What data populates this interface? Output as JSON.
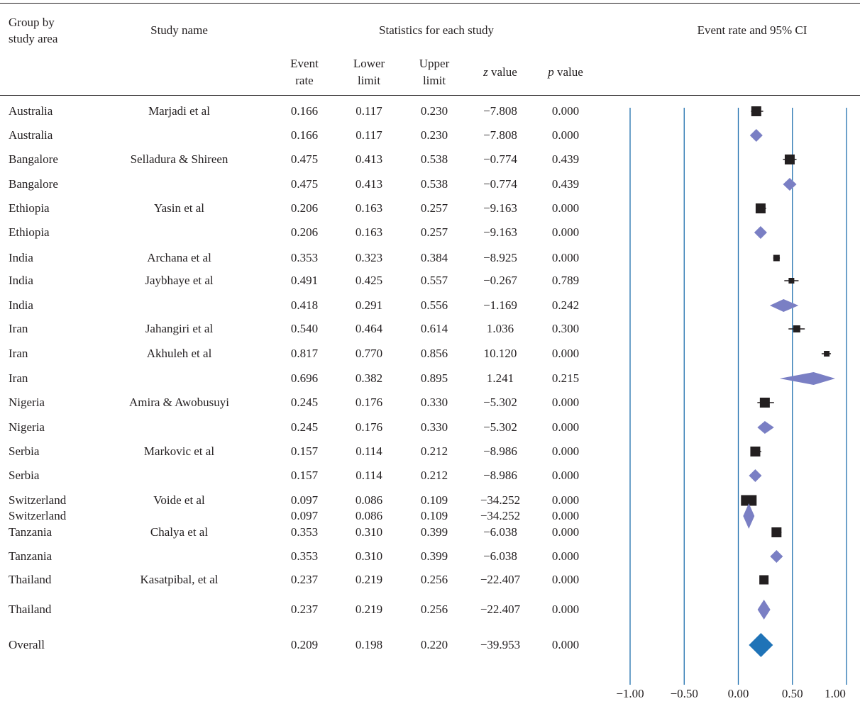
{
  "header": {
    "group_label": "Group by\nstudy area",
    "group_line1": "Group by",
    "group_line2": "study area",
    "study_label": "Study name",
    "stats_label": "Statistics for each study",
    "ci_label": "Event rate and 95% CI",
    "col_event_1": "Event",
    "col_event_2": "rate",
    "col_lower_1": "Lower",
    "col_lower_2": "limit",
    "col_upper_1": "Upper",
    "col_upper_2": "limit",
    "col_z_italic": "z",
    "col_z_rest": " value",
    "col_p_italic": "p",
    "col_p_rest": " value"
  },
  "chart_data": {
    "type": "forest",
    "xlim": [
      -1.0,
      1.0
    ],
    "x_ticks": [
      "−1.00",
      "−0.50",
      "0.00",
      "0.50",
      "1.00"
    ],
    "x_tick_values": [
      -1.0,
      -0.5,
      0.0,
      0.5,
      1.0
    ],
    "rows": [
      {
        "group": "Australia",
        "study": "Marjadi et al",
        "event_rate": "0.166",
        "lower": "0.117",
        "upper": "0.230",
        "z": "−7.808",
        "p": "0.000",
        "er": 0.166,
        "lo": 0.117,
        "hi": 0.23,
        "kind": "study"
      },
      {
        "group": "Australia",
        "study": "",
        "event_rate": "0.166",
        "lower": "0.117",
        "upper": "0.230",
        "z": "−7.808",
        "p": "0.000",
        "er": 0.166,
        "lo": 0.117,
        "hi": 0.23,
        "kind": "subtotal"
      },
      {
        "group": "Bangalore",
        "study": "Selladura & Shireen",
        "event_rate": "0.475",
        "lower": "0.413",
        "upper": "0.538",
        "z": "−0.774",
        "p": "0.439",
        "er": 0.475,
        "lo": 0.413,
        "hi": 0.538,
        "kind": "study"
      },
      {
        "group": "Bangalore",
        "study": "",
        "event_rate": "0.475",
        "lower": "0.413",
        "upper": "0.538",
        "z": "−0.774",
        "p": "0.439",
        "er": 0.475,
        "lo": 0.413,
        "hi": 0.538,
        "kind": "subtotal"
      },
      {
        "group": "Ethiopia",
        "study": "Yasin et al",
        "event_rate": "0.206",
        "lower": "0.163",
        "upper": "0.257",
        "z": "−9.163",
        "p": "0.000",
        "er": 0.206,
        "lo": 0.163,
        "hi": 0.257,
        "kind": "study"
      },
      {
        "group": "Ethiopia",
        "study": "",
        "event_rate": "0.206",
        "lower": "0.163",
        "upper": "0.257",
        "z": "−9.163",
        "p": "0.000",
        "er": 0.206,
        "lo": 0.163,
        "hi": 0.257,
        "kind": "subtotal"
      },
      {
        "group": "India",
        "study": "Archana et al",
        "event_rate": "0.353",
        "lower": "0.323",
        "upper": "0.384",
        "z": "−8.925",
        "p": "0.000",
        "er": 0.353,
        "lo": 0.323,
        "hi": 0.384,
        "kind": "study"
      },
      {
        "group": "India",
        "study": "Jaybhaye et al",
        "event_rate": "0.491",
        "lower": "0.425",
        "upper": "0.557",
        "z": "−0.267",
        "p": "0.789",
        "er": 0.491,
        "lo": 0.425,
        "hi": 0.557,
        "kind": "study"
      },
      {
        "group": "India",
        "study": "",
        "event_rate": "0.418",
        "lower": "0.291",
        "upper": "0.556",
        "z": "−1.169",
        "p": "0.242",
        "er": 0.418,
        "lo": 0.291,
        "hi": 0.556,
        "kind": "subtotal"
      },
      {
        "group": "Iran",
        "study": "Jahangiri et al",
        "event_rate": "0.540",
        "lower": "0.464",
        "upper": "0.614",
        "z": "1.036",
        "p": "0.300",
        "er": 0.54,
        "lo": 0.464,
        "hi": 0.614,
        "kind": "study"
      },
      {
        "group": "Iran",
        "study": "Akhuleh et al",
        "event_rate": "0.817",
        "lower": "0.770",
        "upper": "0.856",
        "z": "10.120",
        "p": "0.000",
        "er": 0.817,
        "lo": 0.77,
        "hi": 0.856,
        "kind": "study"
      },
      {
        "group": "Iran",
        "study": "",
        "event_rate": "0.696",
        "lower": "0.382",
        "upper": "0.895",
        "z": "1.241",
        "p": "0.215",
        "er": 0.696,
        "lo": 0.382,
        "hi": 0.895,
        "kind": "subtotal"
      },
      {
        "group": "Nigeria",
        "study": "Amira & Awobusuyi",
        "event_rate": "0.245",
        "lower": "0.176",
        "upper": "0.330",
        "z": "−5.302",
        "p": "0.000",
        "er": 0.245,
        "lo": 0.176,
        "hi": 0.33,
        "kind": "study"
      },
      {
        "group": "Nigeria",
        "study": "",
        "event_rate": "0.245",
        "lower": "0.176",
        "upper": "0.330",
        "z": "−5.302",
        "p": "0.000",
        "er": 0.245,
        "lo": 0.176,
        "hi": 0.33,
        "kind": "subtotal"
      },
      {
        "group": "Serbia",
        "study": "Markovic et al",
        "event_rate": "0.157",
        "lower": "0.114",
        "upper": "0.212",
        "z": "−8.986",
        "p": "0.000",
        "er": 0.157,
        "lo": 0.114,
        "hi": 0.212,
        "kind": "study"
      },
      {
        "group": "Serbia",
        "study": "",
        "event_rate": "0.157",
        "lower": "0.114",
        "upper": "0.212",
        "z": "−8.986",
        "p": "0.000",
        "er": 0.157,
        "lo": 0.114,
        "hi": 0.212,
        "kind": "subtotal"
      },
      {
        "group": "Switzerland",
        "study": "Voide et al",
        "event_rate": "0.097",
        "lower": "0.086",
        "upper": "0.109",
        "z": "−34.252",
        "p": "0.000",
        "er": 0.097,
        "lo": 0.086,
        "hi": 0.109,
        "kind": "study"
      },
      {
        "group": "Switzerland",
        "study": "",
        "event_rate": "0.097",
        "lower": "0.086",
        "upper": "0.109",
        "z": "−34.252",
        "p": "0.000",
        "er": 0.097,
        "lo": 0.086,
        "hi": 0.109,
        "kind": "subtotal"
      },
      {
        "group": "Tanzania",
        "study": "Chalya et al",
        "event_rate": "0.353",
        "lower": "0.310",
        "upper": "0.399",
        "z": "−6.038",
        "p": "0.000",
        "er": 0.353,
        "lo": 0.31,
        "hi": 0.399,
        "kind": "study"
      },
      {
        "group": "Tanzania",
        "study": "",
        "event_rate": "0.353",
        "lower": "0.310",
        "upper": "0.399",
        "z": "−6.038",
        "p": "0.000",
        "er": 0.353,
        "lo": 0.31,
        "hi": 0.399,
        "kind": "subtotal"
      },
      {
        "group": "Thailand",
        "study": "Kasatpibal, et al",
        "event_rate": "0.237",
        "lower": "0.219",
        "upper": "0.256",
        "z": "−22.407",
        "p": "0.000",
        "er": 0.237,
        "lo": 0.219,
        "hi": 0.256,
        "kind": "study"
      },
      {
        "group": "Thailand",
        "study": "",
        "event_rate": "0.237",
        "lower": "0.219",
        "upper": "0.256",
        "z": "−22.407",
        "p": "0.000",
        "er": 0.237,
        "lo": 0.219,
        "hi": 0.256,
        "kind": "subtotal"
      },
      {
        "group": "Overall",
        "study": "",
        "event_rate": "0.209",
        "lower": "0.198",
        "upper": "0.220",
        "z": "−39.953",
        "p": "0.000",
        "er": 0.209,
        "lo": 0.198,
        "hi": 0.22,
        "kind": "overall"
      }
    ],
    "colors": {
      "text": "#231f20",
      "gridline": "#1f6fae",
      "study_marker": "#231f20",
      "subtotal_diamond": "#7a7fc4",
      "overall_diamond": "#1f73b7"
    }
  }
}
